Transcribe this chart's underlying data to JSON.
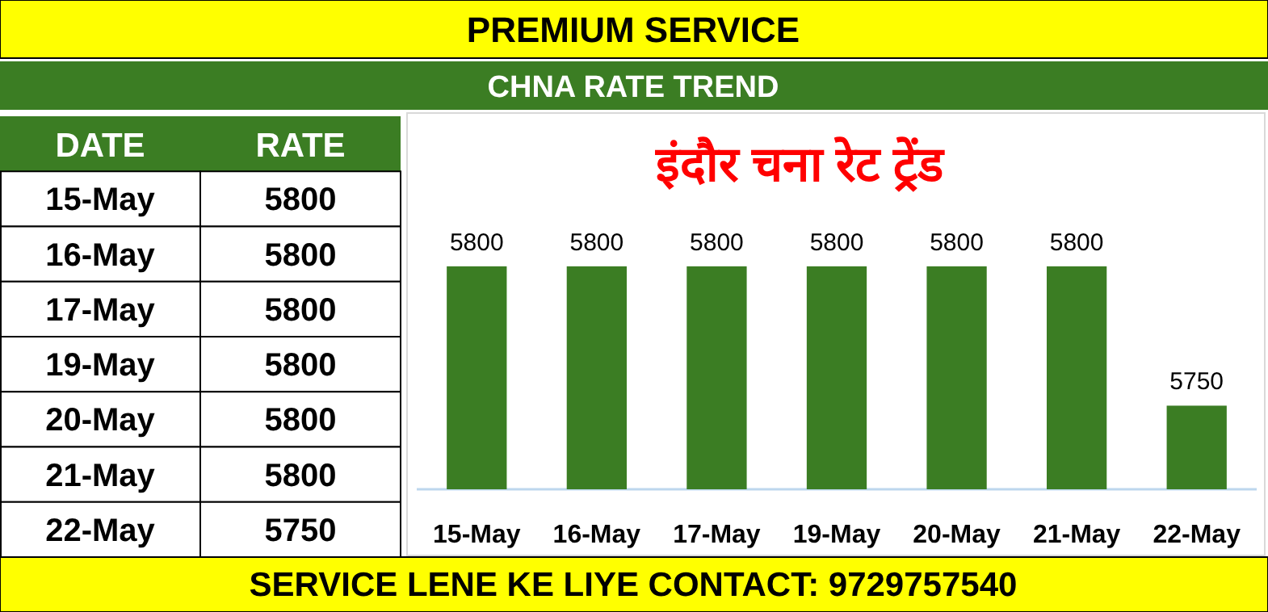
{
  "chart_data": [
    {
      "type": "other",
      "categories": [
        "15-May",
        "16-May",
        "17-May",
        "19-May",
        "20-May",
        "21-May",
        "22-May"
      ],
      "values": [
        5800,
        5800,
        5800,
        5800,
        5800,
        5800,
        5750
      ],
      "data_labels": true,
      "annotations": [
        "DATE",
        "RATE"
      ]
    },
    {
      "type": "bar",
      "title": "इंदौर चना रेट ट्रेंड",
      "subtitle": "CHNA RATE TREND",
      "categories": [
        "15-May",
        "16-May",
        "17-May",
        "19-May",
        "20-May",
        "21-May",
        "22-May"
      ],
      "values": [
        5800,
        5800,
        5800,
        5800,
        5800,
        5800,
        5750
      ],
      "color": "#3b7d23",
      "ylim": [
        5720,
        5855
      ],
      "data_labels": true,
      "tick_labels": "x",
      "annotations": [
        "PREMIUM SERVICE",
        "SERVICE LENE KE LIYE CONTACT: 9729757540"
      ]
    }
  ]
}
